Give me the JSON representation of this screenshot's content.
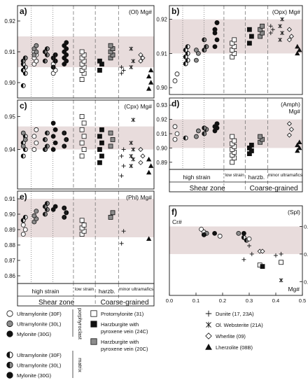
{
  "chart_data": [
    {
      "id": "a",
      "type": "scatter",
      "letter": "a)",
      "title": "(Ol) Mg#",
      "ylim": [
        0.895,
        0.925
      ],
      "yticks": [
        "0.92",
        "0.91",
        "0.90"
      ],
      "yticks_values": [
        0.92,
        0.91,
        0.9
      ],
      "band": [
        0.905,
        0.915
      ],
      "groups": [
        {
          "sym": "hc-w",
          "lane": 0,
          "y": [
            0.899,
            0.903,
            0.904,
            0.905,
            0.906
          ]
        },
        {
          "sym": "hc-g",
          "lane": 0,
          "y": [
            0.907,
            0.908
          ]
        },
        {
          "sym": "c-w",
          "lane": 1,
          "y": [
            0.906,
            0.907,
            0.908,
            0.909,
            0.91
          ]
        },
        {
          "sym": "c-g",
          "lane": 1,
          "y": [
            0.909,
            0.91,
            0.911,
            0.912
          ]
        },
        {
          "sym": "hc-g",
          "lane": 2,
          "y": [
            0.907,
            0.909,
            0.91,
            0.911
          ]
        },
        {
          "sym": "c-w",
          "lane": 3,
          "y": [
            0.903,
            0.904,
            0.906
          ]
        },
        {
          "sym": "hc-b",
          "lane": 3,
          "y": [
            0.905,
            0.907,
            0.908,
            0.909
          ]
        },
        {
          "sym": "c-b",
          "lane": 4,
          "y": [
            0.906,
            0.907,
            0.908,
            0.909,
            0.91,
            0.911,
            0.912,
            0.913
          ]
        },
        {
          "sym": "sq-w",
          "lane": 5,
          "y": [
            0.901,
            0.903,
            0.904,
            0.905,
            0.906,
            0.907,
            0.908,
            0.909,
            0.91
          ]
        },
        {
          "sym": "sq-b",
          "lane": 6,
          "y": [
            0.904,
            0.906,
            0.907
          ]
        },
        {
          "sym": "sq-g",
          "lane": 7,
          "y": [
            0.908,
            0.909,
            0.91,
            0.911,
            0.912
          ]
        },
        {
          "sym": "plus",
          "lane": 8,
          "y": [
            0.903,
            0.904,
            0.905
          ]
        },
        {
          "sym": "star",
          "lane": 9,
          "y": [
            0.905,
            0.907,
            0.911
          ]
        },
        {
          "sym": "dia",
          "lane": 10,
          "y": [
            0.907,
            0.908,
            0.909
          ]
        },
        {
          "sym": "tri",
          "lane": 11,
          "y": [
            0.898,
            0.9,
            0.902,
            0.904
          ]
        }
      ]
    },
    {
      "id": "b",
      "type": "scatter",
      "letter": "b)",
      "title": "(Opx) Mg#",
      "ylim": [
        0.898,
        0.924
      ],
      "yticks": [
        "0.92",
        "0.91",
        "0.90"
      ],
      "yticks_values": [
        0.92,
        0.91,
        0.9
      ],
      "band": [
        0.91,
        0.92
      ],
      "groups": [
        {
          "sym": "c-w",
          "lane": 0,
          "y": [
            0.902,
            0.904
          ]
        },
        {
          "sym": "hc-w",
          "lane": 1,
          "y": [
            0.907,
            0.908,
            0.909,
            0.91,
            0.911,
            0.912
          ]
        },
        {
          "sym": "c-g",
          "lane": 2,
          "y": [
            0.908,
            0.91,
            0.911
          ]
        },
        {
          "sym": "hc-g",
          "lane": 3,
          "y": [
            0.911,
            0.912,
            0.914
          ]
        },
        {
          "sym": "c-b",
          "lane": 4,
          "y": [
            0.912,
            0.914,
            0.916
          ]
        },
        {
          "sym": "hc-b",
          "lane": 4,
          "y": [
            0.917,
            0.919
          ]
        },
        {
          "sym": "sq-w",
          "lane": 5,
          "y": [
            0.909,
            0.91,
            0.911,
            0.912,
            0.913,
            0.914
          ]
        },
        {
          "sym": "sq-b",
          "lane": 6,
          "y": [
            0.913,
            0.915,
            0.917
          ]
        },
        {
          "sym": "sq-g",
          "lane": 7,
          "y": [
            0.915,
            0.916,
            0.917,
            0.918
          ]
        },
        {
          "sym": "plus",
          "lane": 8,
          "y": [
            0.916,
            0.917,
            0.918
          ]
        },
        {
          "sym": "star",
          "lane": 9,
          "y": [
            0.914,
            0.916,
            0.918,
            0.92
          ]
        },
        {
          "sym": "dia",
          "lane": 10,
          "y": [
            0.914,
            0.915,
            0.917
          ]
        },
        {
          "sym": "tri",
          "lane": 11,
          "y": [
            0.91,
            0.911,
            0.912
          ]
        }
      ]
    },
    {
      "id": "c",
      "type": "scatter",
      "letter": "c)",
      "title": "(Cpx) Mg#",
      "ylim": [
        0.928,
        0.955
      ],
      "yticks": [
        "0.95",
        "0.94"
      ],
      "yticks_values": [
        0.95,
        0.94
      ],
      "band": [
        0.94,
        0.947
      ],
      "groups": [
        {
          "sym": "hc-w",
          "lane": 0,
          "y": [
            0.938,
            0.94,
            0.942,
            0.944
          ]
        },
        {
          "sym": "c-g",
          "lane": 0,
          "y": [
            0.941,
            0.943,
            0.945
          ]
        },
        {
          "sym": "c-w",
          "lane": 1,
          "y": [
            0.94,
            0.942,
            0.944,
            0.946
          ]
        },
        {
          "sym": "hc-g",
          "lane": 2,
          "y": [
            0.94,
            0.941,
            0.943,
            0.945
          ]
        },
        {
          "sym": "c-b",
          "lane": 3,
          "y": [
            0.94,
            0.942,
            0.944,
            0.946,
            0.948
          ]
        },
        {
          "sym": "hc-b",
          "lane": 4,
          "y": [
            0.941,
            0.943,
            0.945
          ]
        },
        {
          "sym": "sq-w",
          "lane": 5,
          "y": [
            0.938,
            0.94,
            0.942,
            0.944,
            0.946,
            0.948,
            0.95
          ]
        },
        {
          "sym": "sq-b",
          "lane": 6,
          "y": [
            0.936,
            0.938,
            0.94,
            0.942,
            0.944,
            0.946
          ]
        },
        {
          "sym": "sq-g",
          "lane": 7,
          "y": [
            0.941,
            0.943,
            0.945
          ]
        },
        {
          "sym": "plus",
          "lane": 8,
          "y": [
            0.932,
            0.935,
            0.938,
            0.94
          ]
        },
        {
          "sym": "star",
          "lane": 9,
          "y": [
            0.935,
            0.937,
            0.938,
            0.94,
            0.942,
            0.949
          ]
        },
        {
          "sym": "dia",
          "lane": 10,
          "y": [
            0.936,
            0.938,
            0.94
          ]
        },
        {
          "sym": "tri",
          "lane": 11,
          "y": [
            0.933,
            0.935,
            0.937
          ]
        }
      ]
    },
    {
      "id": "d",
      "type": "scatter",
      "letter": "d)",
      "title": "(Amph)",
      "title2": "Mg#",
      "ylim": [
        0.885,
        0.935
      ],
      "yticks": [
        "0.93",
        "0.92",
        "0.91",
        "0.90",
        "0.89"
      ],
      "yticks_values": [
        0.93,
        0.92,
        0.91,
        0.9,
        0.89
      ],
      "band": [
        0.9,
        0.92
      ],
      "groups": [
        {
          "sym": "c-w",
          "lane": 0,
          "y": [
            0.906,
            0.91,
            0.915
          ]
        },
        {
          "sym": "hc-w",
          "lane": 1,
          "y": [
            0.907
          ]
        },
        {
          "sym": "c-g",
          "lane": 2,
          "y": [
            0.908,
            0.912
          ]
        },
        {
          "sym": "hc-g",
          "lane": 3,
          "y": [
            0.91,
            0.913,
            0.914
          ]
        },
        {
          "sym": "c-b",
          "lane": 4,
          "y": [
            0.912,
            0.914
          ]
        },
        {
          "sym": "hc-b",
          "lane": 4,
          "y": [
            0.915,
            0.917
          ]
        },
        {
          "sym": "sq-w",
          "lane": 5,
          "y": [
            0.89,
            0.893,
            0.895,
            0.897,
            0.899,
            0.901,
            0.903,
            0.905,
            0.908
          ]
        },
        {
          "sym": "sq-b",
          "lane": 6,
          "y": [
            0.896,
            0.898,
            0.9,
            0.902
          ]
        },
        {
          "sym": "sq-g",
          "lane": 7,
          "y": [
            0.904,
            0.906,
            0.908
          ]
        },
        {
          "sym": "dia",
          "lane": 10,
          "y": [
            0.909,
            0.913,
            0.917
          ]
        },
        {
          "sym": "tri",
          "lane": 11,
          "y": [
            0.898,
            0.9,
            0.902,
            0.904
          ]
        }
      ]
    },
    {
      "id": "e",
      "type": "scatter",
      "letter": "e)",
      "title": "(Phl) Mg#",
      "ylim": [
        0.855,
        0.915
      ],
      "yticks": [
        "0.91",
        "0.90",
        "0.89",
        "0.88",
        "0.87",
        "0.86"
      ],
      "yticks_values": [
        0.91,
        0.9,
        0.89,
        0.88,
        0.87,
        0.86
      ],
      "band": [
        0.885,
        0.91
      ],
      "groups": [
        {
          "sym": "c-w",
          "lane": 0,
          "y": [
            0.887,
            0.89,
            0.893
          ]
        },
        {
          "sym": "hc-w",
          "lane": 0,
          "y": [
            0.896,
            0.898
          ]
        },
        {
          "sym": "c-g",
          "lane": 1,
          "y": [
            0.895,
            0.897,
            0.899,
            0.902
          ]
        },
        {
          "sym": "hc-g",
          "lane": 2,
          "y": [
            0.9,
            0.903,
            0.905,
            0.907
          ]
        },
        {
          "sym": "c-b",
          "lane": 3,
          "y": [
            0.903,
            0.905
          ]
        },
        {
          "sym": "hc-b",
          "lane": 4,
          "y": [
            0.898,
            0.901,
            0.904
          ]
        },
        {
          "sym": "sq-w",
          "lane": 5,
          "y": [
            0.887,
            0.889,
            0.891,
            0.893,
            0.896
          ]
        },
        {
          "sym": "sq-g",
          "lane": 7,
          "y": [
            0.898,
            0.901
          ]
        },
        {
          "sym": "plus",
          "lane": 8,
          "y": [
            0.881,
            0.889
          ]
        },
        {
          "sym": "tri",
          "lane": 11,
          "y": [
            0.884
          ]
        }
      ]
    },
    {
      "id": "f",
      "type": "scatter",
      "letter": "f)",
      "title": "(Spl)",
      "xlabel": "Mg#",
      "ylabel": "Cr#",
      "xlim": [
        0,
        0.5
      ],
      "ylim": [
        0.3,
        0.95
      ],
      "xticks": [
        "0.0",
        "0.1",
        "0.2",
        "0.3",
        "0.4",
        "0.5"
      ],
      "xticks_values": [
        0.0,
        0.1,
        0.2,
        0.3,
        0.4,
        0.5
      ],
      "yticks": [
        "0.8",
        "0.6",
        "0.4"
      ],
      "yticks_values": [
        0.8,
        0.6,
        0.4
      ],
      "band": [
        0.6,
        0.8
      ],
      "points": [
        {
          "sym": "c-w",
          "x": 0.12,
          "y": 0.78
        },
        {
          "sym": "c-w",
          "x": 0.13,
          "y": 0.76
        },
        {
          "sym": "c-g",
          "x": 0.14,
          "y": 0.75
        },
        {
          "sym": "hc-b",
          "x": 0.13,
          "y": 0.74
        },
        {
          "sym": "c-b",
          "x": 0.17,
          "y": 0.75
        },
        {
          "sym": "c-w",
          "x": 0.19,
          "y": 0.73
        },
        {
          "sym": "c-g",
          "x": 0.26,
          "y": 0.75
        },
        {
          "sym": "c-b",
          "x": 0.28,
          "y": 0.75
        },
        {
          "sym": "hc-w",
          "x": 0.28,
          "y": 0.72
        },
        {
          "sym": "hc-g",
          "x": 0.29,
          "y": 0.7
        },
        {
          "sym": "c-w",
          "x": 0.3,
          "y": 0.71
        },
        {
          "sym": "plus",
          "x": 0.3,
          "y": 0.66
        },
        {
          "sym": "plus",
          "x": 0.31,
          "y": 0.6
        },
        {
          "sym": "plus",
          "x": 0.28,
          "y": 0.56
        },
        {
          "sym": "dia",
          "x": 0.34,
          "y": 0.62
        },
        {
          "sym": "dia",
          "x": 0.35,
          "y": 0.62
        },
        {
          "sym": "sq-w",
          "x": 0.34,
          "y": 0.52
        },
        {
          "sym": "sq-b",
          "x": 0.35,
          "y": 0.51
        },
        {
          "sym": "plus",
          "x": 0.4,
          "y": 0.59
        },
        {
          "sym": "plus",
          "x": 0.42,
          "y": 0.6
        },
        {
          "sym": "sq-w",
          "x": 0.42,
          "y": 0.54
        },
        {
          "sym": "star",
          "x": 0.42,
          "y": 0.41
        }
      ]
    }
  ],
  "x_groups": {
    "high_strain": "high strain",
    "low_strain": "low strain",
    "harzb": "harzb.",
    "minor_ultramafics": "minor ultramafics",
    "shear_zone": "Shear zone",
    "coarse_grained": "Coarse-grained"
  },
  "colors": {
    "band": "#e8dcdc",
    "gray_fill": "#8c8c8c",
    "black": "#111111"
  },
  "legend": {
    "porphyroclast_label": "porphyroclast",
    "matrix_label": "matrix",
    "porphyroclast": [
      {
        "sym": "c-w",
        "label": "Ultramylonite (30F)"
      },
      {
        "sym": "c-g",
        "label": "Ultramylonite (30L)"
      },
      {
        "sym": "c-b",
        "label": "Mylonite (30G)"
      }
    ],
    "matrix": [
      {
        "sym": "hc-w",
        "label": "Ultramylonite (30F)"
      },
      {
        "sym": "hc-g",
        "label": "Ultramylonite (30L)"
      },
      {
        "sym": "hc-b",
        "label": "Mylonite (30G)"
      }
    ],
    "middle": [
      {
        "sym": "sq-w",
        "label": "Protomylonite (31)"
      },
      {
        "sym": "sq-b",
        "label": "Harzburgite with pyroxene vein (24C)"
      },
      {
        "sym": "sq-g",
        "label": "Harzburgite with pyroxene vein (20C)"
      }
    ],
    "right": [
      {
        "sym": "plus",
        "label": "Dunite (17, 23A)"
      },
      {
        "sym": "star",
        "label": "Ol. Websterite (21A)"
      },
      {
        "sym": "dia",
        "label": "Wherlite (09)"
      },
      {
        "sym": "tri",
        "label": "Lherzolite (08B)"
      }
    ]
  }
}
